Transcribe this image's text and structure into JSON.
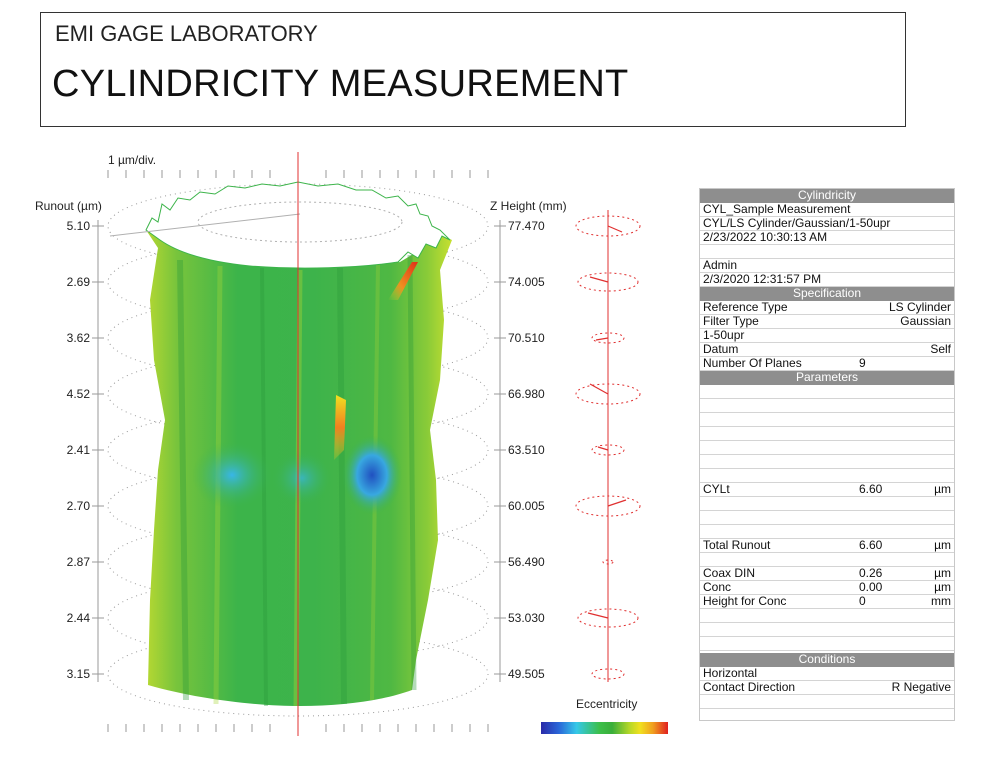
{
  "header": {
    "lab_name": "EMI GAGE LABORATORY",
    "title": "CYLINDRICITY MEASUREMENT"
  },
  "plot": {
    "scale_label": "1 µm/div.",
    "runout_label": "Runout (µm)",
    "zheight_label": "Z Height (mm)",
    "runout_values": [
      "5.10",
      "2.69",
      "3.62",
      "4.52",
      "2.41",
      "2.70",
      "2.87",
      "2.44",
      "3.15"
    ],
    "z_heights": [
      "77.470",
      "74.005",
      "70.510",
      "66.980",
      "63.510",
      "60.005",
      "56.490",
      "53.030",
      "49.505"
    ],
    "eccentricity_label": "Eccentricity",
    "colors": {
      "surface_green": "#3cb44a",
      "surface_yellow": "#c8e030",
      "surface_blue": "#3ab4e6",
      "surface_orange": "#f08020",
      "axis_red": "#e03030",
      "guide_gray": "#9a9a9a"
    }
  },
  "panel": {
    "cylindricity": {
      "header": "Cylindricity",
      "lines": [
        "CYL_Sample Measurement",
        "CYL/LS Cylinder/Gaussian/1-50upr",
        "2/23/2022 10:30:13 AM",
        "",
        "Admin",
        "2/3/2020 12:31:57 PM"
      ]
    },
    "specification": {
      "header": "Specification",
      "rows": [
        {
          "label": "Reference Type",
          "mid": "",
          "right": "LS Cylinder"
        },
        {
          "label": "Filter Type",
          "mid": "",
          "right": "Gaussian"
        },
        {
          "label": "1-50upr",
          "mid": "",
          "right": ""
        },
        {
          "label": "Datum",
          "mid": "",
          "right": "Self"
        },
        {
          "label": "Number Of Planes",
          "mid": "9",
          "right": ""
        }
      ]
    },
    "parameters": {
      "header": "Parameters",
      "rows": [
        {
          "label": "",
          "value": "",
          "unit": ""
        },
        {
          "label": "",
          "value": "",
          "unit": ""
        },
        {
          "label": "",
          "value": "",
          "unit": ""
        },
        {
          "label": "",
          "value": "",
          "unit": ""
        },
        {
          "label": "",
          "value": "",
          "unit": ""
        },
        {
          "label": "",
          "value": "",
          "unit": ""
        },
        {
          "label": "",
          "value": "",
          "unit": ""
        },
        {
          "label": "CYLt",
          "value": "6.60",
          "unit": "µm"
        },
        {
          "label": "",
          "value": "",
          "unit": ""
        },
        {
          "label": "",
          "value": "",
          "unit": ""
        },
        {
          "label": "",
          "value": "",
          "unit": ""
        },
        {
          "label": "Total Runout",
          "value": "6.60",
          "unit": "µm"
        },
        {
          "label": "",
          "value": "",
          "unit": ""
        },
        {
          "label": "Coax DIN",
          "value": "0.26",
          "unit": "µm"
        },
        {
          "label": "Conc",
          "value": "0.00",
          "unit": "µm"
        },
        {
          "label": "Height for Conc",
          "value": "0",
          "unit": "mm"
        },
        {
          "label": "",
          "value": "",
          "unit": ""
        },
        {
          "label": "",
          "value": "",
          "unit": ""
        },
        {
          "label": "",
          "value": "",
          "unit": ""
        },
        {
          "label": "",
          "value": "",
          "unit": ""
        }
      ]
    },
    "conditions": {
      "header": "Conditions",
      "rows": [
        {
          "label": "Horizontal",
          "right": ""
        },
        {
          "label": "Contact Direction",
          "right": "R Negative"
        },
        {
          "label": "",
          "right": ""
        }
      ]
    }
  }
}
